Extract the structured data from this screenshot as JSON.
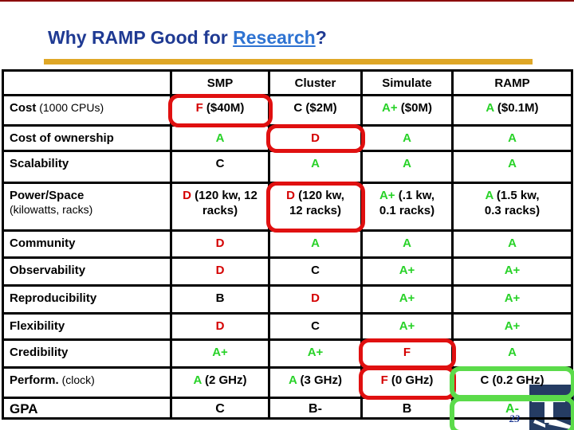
{
  "slide": {
    "title": {
      "prefix": "Why RAMP Good for ",
      "highlight": "Research",
      "suffix": "?"
    },
    "page_number": "23"
  },
  "icons": {
    "logo": "university-logo-fragment"
  },
  "colors": {
    "title_navy": "#1F3A93",
    "link_blue": "#2E73D2",
    "gold_bar": "#DFA727",
    "grade_red": "#D40000",
    "grade_green": "#28D228",
    "red_callout": "#E01010",
    "green_callout": "#5BDB4A",
    "logo_navy": "#253C63"
  },
  "table": {
    "column_headers": [
      "",
      "SMP",
      "Cluster",
      "Simulate",
      "RAMP"
    ],
    "rows": [
      {
        "label": "Cost",
        "label_note": "(1000 CPUs)",
        "note_block": false,
        "cells": [
          {
            "grade": "F",
            "color": "red",
            "note": "($40M)"
          },
          {
            "grade": "C",
            "color": "black",
            "note": "($2M)"
          },
          {
            "grade": "A+",
            "color": "green",
            "note": "($0M)"
          },
          {
            "grade": "A",
            "color": "green",
            "note": "($0.1M)"
          }
        ]
      },
      {
        "label": "Cost of ownership",
        "cells": [
          {
            "grade": "A",
            "color": "green"
          },
          {
            "grade": "D",
            "color": "red"
          },
          {
            "grade": "A",
            "color": "green"
          },
          {
            "grade": "A",
            "color": "green"
          }
        ]
      },
      {
        "label": "Scalability",
        "cells": [
          {
            "grade": "C",
            "color": "black"
          },
          {
            "grade": "A",
            "color": "green"
          },
          {
            "grade": "A",
            "color": "green"
          },
          {
            "grade": "A",
            "color": "green"
          }
        ]
      },
      {
        "label": "Power/Space",
        "label_note": "(kilowatts, racks)",
        "note_block": true,
        "cells": [
          {
            "grade": "D",
            "color": "red",
            "note": "(120 kw, 12\nracks)"
          },
          {
            "grade": "D",
            "color": "red",
            "note": "(120 kw,\n12 racks)"
          },
          {
            "grade": "A+",
            "color": "green",
            "note": "(.1 kw,\n0.1 racks)"
          },
          {
            "grade": "A",
            "color": "green",
            "note": "(1.5 kw,\n0.3 racks)"
          }
        ]
      },
      {
        "label": "Community",
        "cells": [
          {
            "grade": "D",
            "color": "red"
          },
          {
            "grade": "A",
            "color": "green"
          },
          {
            "grade": "A",
            "color": "green"
          },
          {
            "grade": "A",
            "color": "green"
          }
        ]
      },
      {
        "label": "Observability",
        "cells": [
          {
            "grade": "D",
            "color": "red"
          },
          {
            "grade": "C",
            "color": "black"
          },
          {
            "grade": "A+",
            "color": "green"
          },
          {
            "grade": "A+",
            "color": "green"
          }
        ]
      },
      {
        "label": "Reproducibility",
        "cells": [
          {
            "grade": "B",
            "color": "black"
          },
          {
            "grade": "D",
            "color": "red"
          },
          {
            "grade": "A+",
            "color": "green"
          },
          {
            "grade": "A+",
            "color": "green"
          }
        ]
      },
      {
        "label": "Flexibility",
        "cells": [
          {
            "grade": "D",
            "color": "red"
          },
          {
            "grade": "C",
            "color": "black"
          },
          {
            "grade": "A+",
            "color": "green"
          },
          {
            "grade": "A+",
            "color": "green"
          }
        ]
      },
      {
        "label": "Credibility",
        "cells": [
          {
            "grade": "A+",
            "color": "green"
          },
          {
            "grade": "A+",
            "color": "green"
          },
          {
            "grade": "F",
            "color": "red"
          },
          {
            "grade": "A",
            "color": "green"
          }
        ]
      },
      {
        "label": "Perform.",
        "label_note": "(clock)",
        "note_block": false,
        "cells": [
          {
            "grade": "A",
            "color": "green",
            "note": "(2 GHz)"
          },
          {
            "grade": "A",
            "color": "green",
            "note": "(3 GHz)"
          },
          {
            "grade": "F",
            "color": "red",
            "note": "(0 GHz)"
          },
          {
            "grade": "C",
            "color": "black",
            "note": "(0.2 GHz)"
          }
        ]
      },
      {
        "label": "GPA",
        "cells": [
          {
            "grade": "C",
            "color": "black"
          },
          {
            "grade": "B-",
            "color": "black"
          },
          {
            "grade": "B",
            "color": "black"
          },
          {
            "grade": "A-",
            "color": "green"
          }
        ]
      }
    ]
  },
  "callouts": [
    {
      "row": 0,
      "col": 1,
      "color": "red"
    },
    {
      "row": 1,
      "col": 2,
      "color": "red"
    },
    {
      "row": 3,
      "col": 2,
      "color": "red"
    },
    {
      "row": 8,
      "col": 3,
      "color": "red"
    },
    {
      "row": 9,
      "col": 3,
      "color": "red"
    },
    {
      "row": 9,
      "col": 4,
      "color": "green"
    },
    {
      "row": 10,
      "col": 4,
      "color": "green"
    }
  ]
}
